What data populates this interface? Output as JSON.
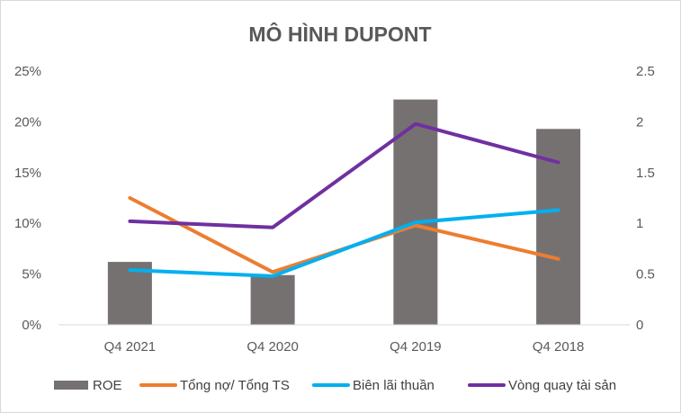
{
  "chart_data": {
    "type": "bar",
    "title": "MÔ HÌNH DUPONT",
    "categories": [
      "Q4 2021",
      "Q4 2020",
      "Q4 2019",
      "Q4 2018"
    ],
    "y_left": {
      "min": 0,
      "max": 0.25,
      "ticks": [
        "0%",
        "5%",
        "10%",
        "15%",
        "20%",
        "25%"
      ]
    },
    "y_right": {
      "min": 0,
      "max": 2.5,
      "ticks": [
        "0",
        "0.5",
        "1",
        "1.5",
        "2",
        "2.5"
      ]
    },
    "grid": false,
    "legend_position": "bottom",
    "series": [
      {
        "name": "ROE",
        "type": "bar",
        "axis": "left",
        "color": "#767171",
        "values": [
          0.062,
          0.049,
          0.222,
          0.193
        ]
      },
      {
        "name": "Tổng nợ/ Tổng TS",
        "type": "line",
        "axis": "left",
        "color": "#ED7D31",
        "values": [
          0.125,
          0.052,
          0.098,
          0.065
        ]
      },
      {
        "name": "Biên lãi thuần",
        "type": "line",
        "axis": "left",
        "color": "#00B0F0",
        "values": [
          0.054,
          0.048,
          0.101,
          0.113
        ]
      },
      {
        "name": "Vòng quay tài sản",
        "type": "line",
        "axis": "right",
        "color": "#7030A0",
        "values": [
          1.02,
          0.96,
          1.98,
          1.6
        ]
      }
    ]
  }
}
